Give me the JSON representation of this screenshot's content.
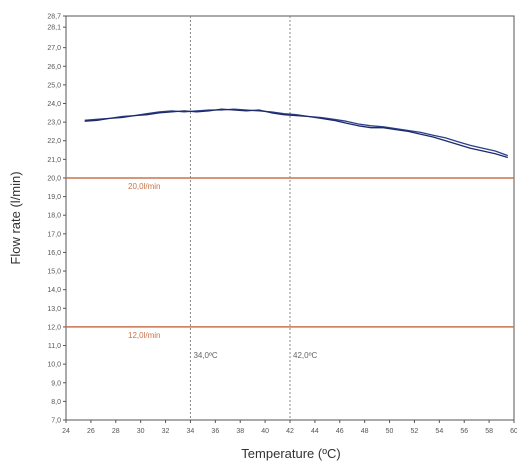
{
  "chart_data": {
    "type": "line",
    "xlabel": "Temperature (ºC)",
    "ylabel": "Flow rate (l/min)",
    "xlim": [
      24,
      60
    ],
    "ylim": [
      7.0,
      28.7
    ],
    "grid": false,
    "x_ticks": [
      "24",
      "26",
      "28",
      "30",
      "32",
      "34",
      "36",
      "38",
      "40",
      "42",
      "44",
      "46",
      "48",
      "50",
      "52",
      "54",
      "56",
      "58",
      "60"
    ],
    "y_ticks": [
      {
        "value": 28.7,
        "label": "28,7"
      },
      {
        "value": 28.1,
        "label": "28,1"
      },
      {
        "value": 27.0,
        "label": "27,0"
      },
      {
        "value": 26.0,
        "label": "26,0"
      },
      {
        "value": 25.0,
        "label": "25,0"
      },
      {
        "value": 24.0,
        "label": "24,0"
      },
      {
        "value": 23.0,
        "label": "23,0"
      },
      {
        "value": 22.0,
        "label": "22,0"
      },
      {
        "value": 21.0,
        "label": "21,0"
      },
      {
        "value": 20.0,
        "label": "20,0"
      },
      {
        "value": 19.0,
        "label": "19,0"
      },
      {
        "value": 18.0,
        "label": "18,0"
      },
      {
        "value": 17.0,
        "label": "17,0"
      },
      {
        "value": 16.0,
        "label": "16,0"
      },
      {
        "value": 15.0,
        "label": "15,0"
      },
      {
        "value": 14.0,
        "label": "14,0"
      },
      {
        "value": 13.0,
        "label": "13,0"
      },
      {
        "value": 12.0,
        "label": "12,0"
      },
      {
        "value": 11.0,
        "label": "11,0"
      },
      {
        "value": 10.0,
        "label": "10,0"
      },
      {
        "value": 9.0,
        "label": "9,0"
      },
      {
        "value": 8.0,
        "label": "8,0"
      },
      {
        "value": 7.0,
        "label": "7,0"
      }
    ],
    "series": [
      {
        "color": "#2b3f8c",
        "x": [
          25.5,
          26.5,
          27.5,
          28.5,
          29.5,
          30.5,
          31.5,
          32.5,
          33.5,
          34.5,
          35.5,
          36.5,
          37.5,
          38.5,
          39.5,
          40.5,
          41.5,
          42.5,
          43.5,
          44.5,
          45.5,
          46.5,
          47.5,
          48.5,
          49.5,
          50.5,
          51.5,
          52.5,
          53.5,
          54.5,
          55.5,
          56.5,
          57.5,
          58.5,
          59.5
        ],
        "values": [
          23.1,
          23.15,
          23.2,
          23.3,
          23.35,
          23.45,
          23.55,
          23.6,
          23.55,
          23.6,
          23.65,
          23.65,
          23.7,
          23.65,
          23.6,
          23.55,
          23.45,
          23.4,
          23.3,
          23.25,
          23.15,
          23.05,
          22.9,
          22.8,
          22.75,
          22.65,
          22.55,
          22.45,
          22.3,
          22.15,
          21.95,
          21.75,
          21.6,
          21.45,
          21.2
        ]
      },
      {
        "color": "#1e2a66",
        "x": [
          25.5,
          26.5,
          27.5,
          28.5,
          29.5,
          30.5,
          31.5,
          32.5,
          33.5,
          34.5,
          35.5,
          36.5,
          37.5,
          38.5,
          39.5,
          40.5,
          41.5,
          42.5,
          43.5,
          44.5,
          45.5,
          46.5,
          47.5,
          48.5,
          49.5,
          50.5,
          51.5,
          52.5,
          53.5,
          54.5,
          55.5,
          56.5,
          57.5,
          58.5,
          59.5
        ],
        "values": [
          23.05,
          23.1,
          23.2,
          23.25,
          23.35,
          23.4,
          23.5,
          23.55,
          23.6,
          23.55,
          23.6,
          23.7,
          23.65,
          23.6,
          23.65,
          23.5,
          23.4,
          23.35,
          23.3,
          23.2,
          23.1,
          22.95,
          22.8,
          22.7,
          22.7,
          22.6,
          22.5,
          22.35,
          22.2,
          22.0,
          21.8,
          21.6,
          21.45,
          21.3,
          21.1
        ]
      }
    ],
    "reference_lines": [
      {
        "axis": "y",
        "value": 20.0,
        "label": "20,0l/min",
        "color": "#c8744a"
      },
      {
        "axis": "y",
        "value": 12.0,
        "label": "12,0l/min",
        "color": "#c8744a"
      },
      {
        "axis": "x",
        "value": 34.0,
        "label": "34,0ºC",
        "color": "#888888"
      },
      {
        "axis": "x",
        "value": 42.0,
        "label": "42,0ºC",
        "color": "#888888"
      }
    ]
  }
}
